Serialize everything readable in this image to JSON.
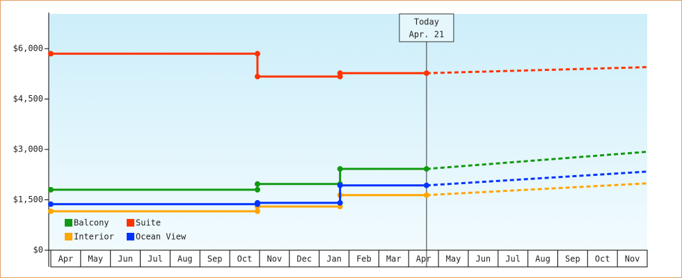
{
  "chart_data": {
    "type": "step-line",
    "categories": [
      "Apr",
      "May",
      "Jun",
      "Jul",
      "Aug",
      "Sep",
      "Oct",
      "Nov",
      "Dec",
      "Jan",
      "Feb",
      "Mar",
      "Apr",
      "May",
      "Jun",
      "Jul",
      "Aug",
      "Sep",
      "Oct",
      "Nov"
    ],
    "xlim": [
      0,
      20
    ],
    "ylim": [
      0,
      7000
    ],
    "yticks": [
      {
        "value": 0,
        "label": "$0"
      },
      {
        "value": 1500,
        "label": "$1,500"
      },
      {
        "value": 3000,
        "label": "$3,000"
      },
      {
        "value": 4500,
        "label": "$4,500"
      },
      {
        "value": 6000,
        "label": "$6,000"
      }
    ],
    "annotation": {
      "text": [
        "Today",
        "Apr. 21"
      ],
      "x": 12.6
    },
    "series": [
      {
        "name": "Balcony",
        "color": "#119911",
        "x": [
          0,
          6.93,
          6.93,
          9.7,
          9.7,
          12.6
        ],
        "values": [
          1800,
          1800,
          1970,
          1970,
          2420,
          2420
        ],
        "projection": {
          "x": [
            12.6,
            20
          ],
          "values": [
            2420,
            2930
          ]
        }
      },
      {
        "name": "Suite",
        "color": "#ff3300",
        "x": [
          0,
          6.93,
          6.93,
          9.7,
          9.7,
          12.6
        ],
        "values": [
          5850,
          5850,
          5170,
          5170,
          5270,
          5270
        ],
        "projection": {
          "x": [
            12.6,
            20
          ],
          "values": [
            5270,
            5450
          ]
        }
      },
      {
        "name": "Interior",
        "color": "#ffa500",
        "x": [
          0,
          6.93,
          6.93,
          9.7,
          9.7,
          12.6
        ],
        "values": [
          1160,
          1160,
          1300,
          1300,
          1640,
          1640
        ],
        "projection": {
          "x": [
            12.6,
            20
          ],
          "values": [
            1640,
            1990
          ]
        }
      },
      {
        "name": "Ocean View",
        "color": "#0033ff",
        "x": [
          0,
          6.93,
          6.93,
          9.7,
          9.7,
          12.6
        ],
        "values": [
          1370,
          1370,
          1410,
          1410,
          1930,
          1930
        ],
        "projection": {
          "x": [
            12.6,
            20
          ],
          "values": [
            1930,
            2340
          ]
        }
      }
    ]
  }
}
